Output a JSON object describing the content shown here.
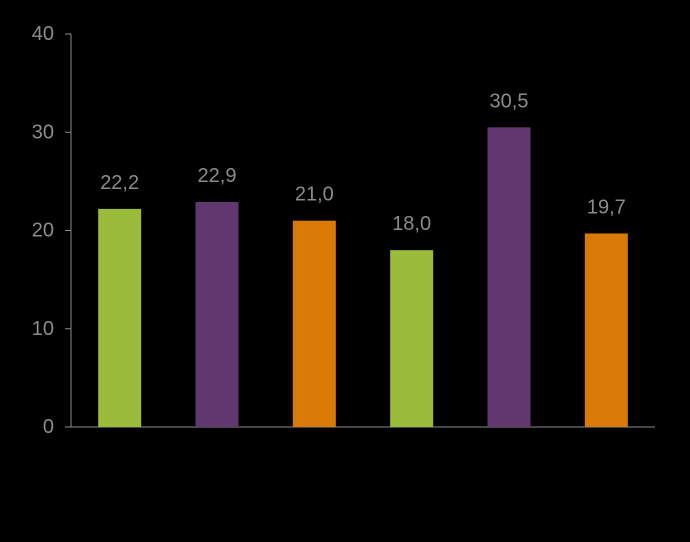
{
  "chart_data": {
    "type": "bar",
    "categories": [
      "",
      "",
      "",
      "",
      "",
      ""
    ],
    "values": [
      22.2,
      22.9,
      21.0,
      18.0,
      30.5,
      19.7
    ],
    "data_labels": [
      "22,2",
      "22,9",
      "21,0",
      "18,0",
      "30,5",
      "19,7"
    ],
    "bar_colors": [
      "#9bbb3b",
      "#60376f",
      "#d97a06",
      "#9bbb3b",
      "#60376f",
      "#d97a06"
    ],
    "ylim": [
      0,
      40
    ],
    "yticks": [
      0,
      10,
      20,
      30,
      40
    ],
    "ytick_labels": [
      "0",
      "10",
      "20",
      "30",
      "40"
    ],
    "grid": false,
    "legend": "none",
    "title": "",
    "xlabel": "",
    "ylabel": ""
  },
  "colors": {
    "background": "#000000",
    "axis": "#8c8c8c",
    "text": "#8c8c8c"
  }
}
